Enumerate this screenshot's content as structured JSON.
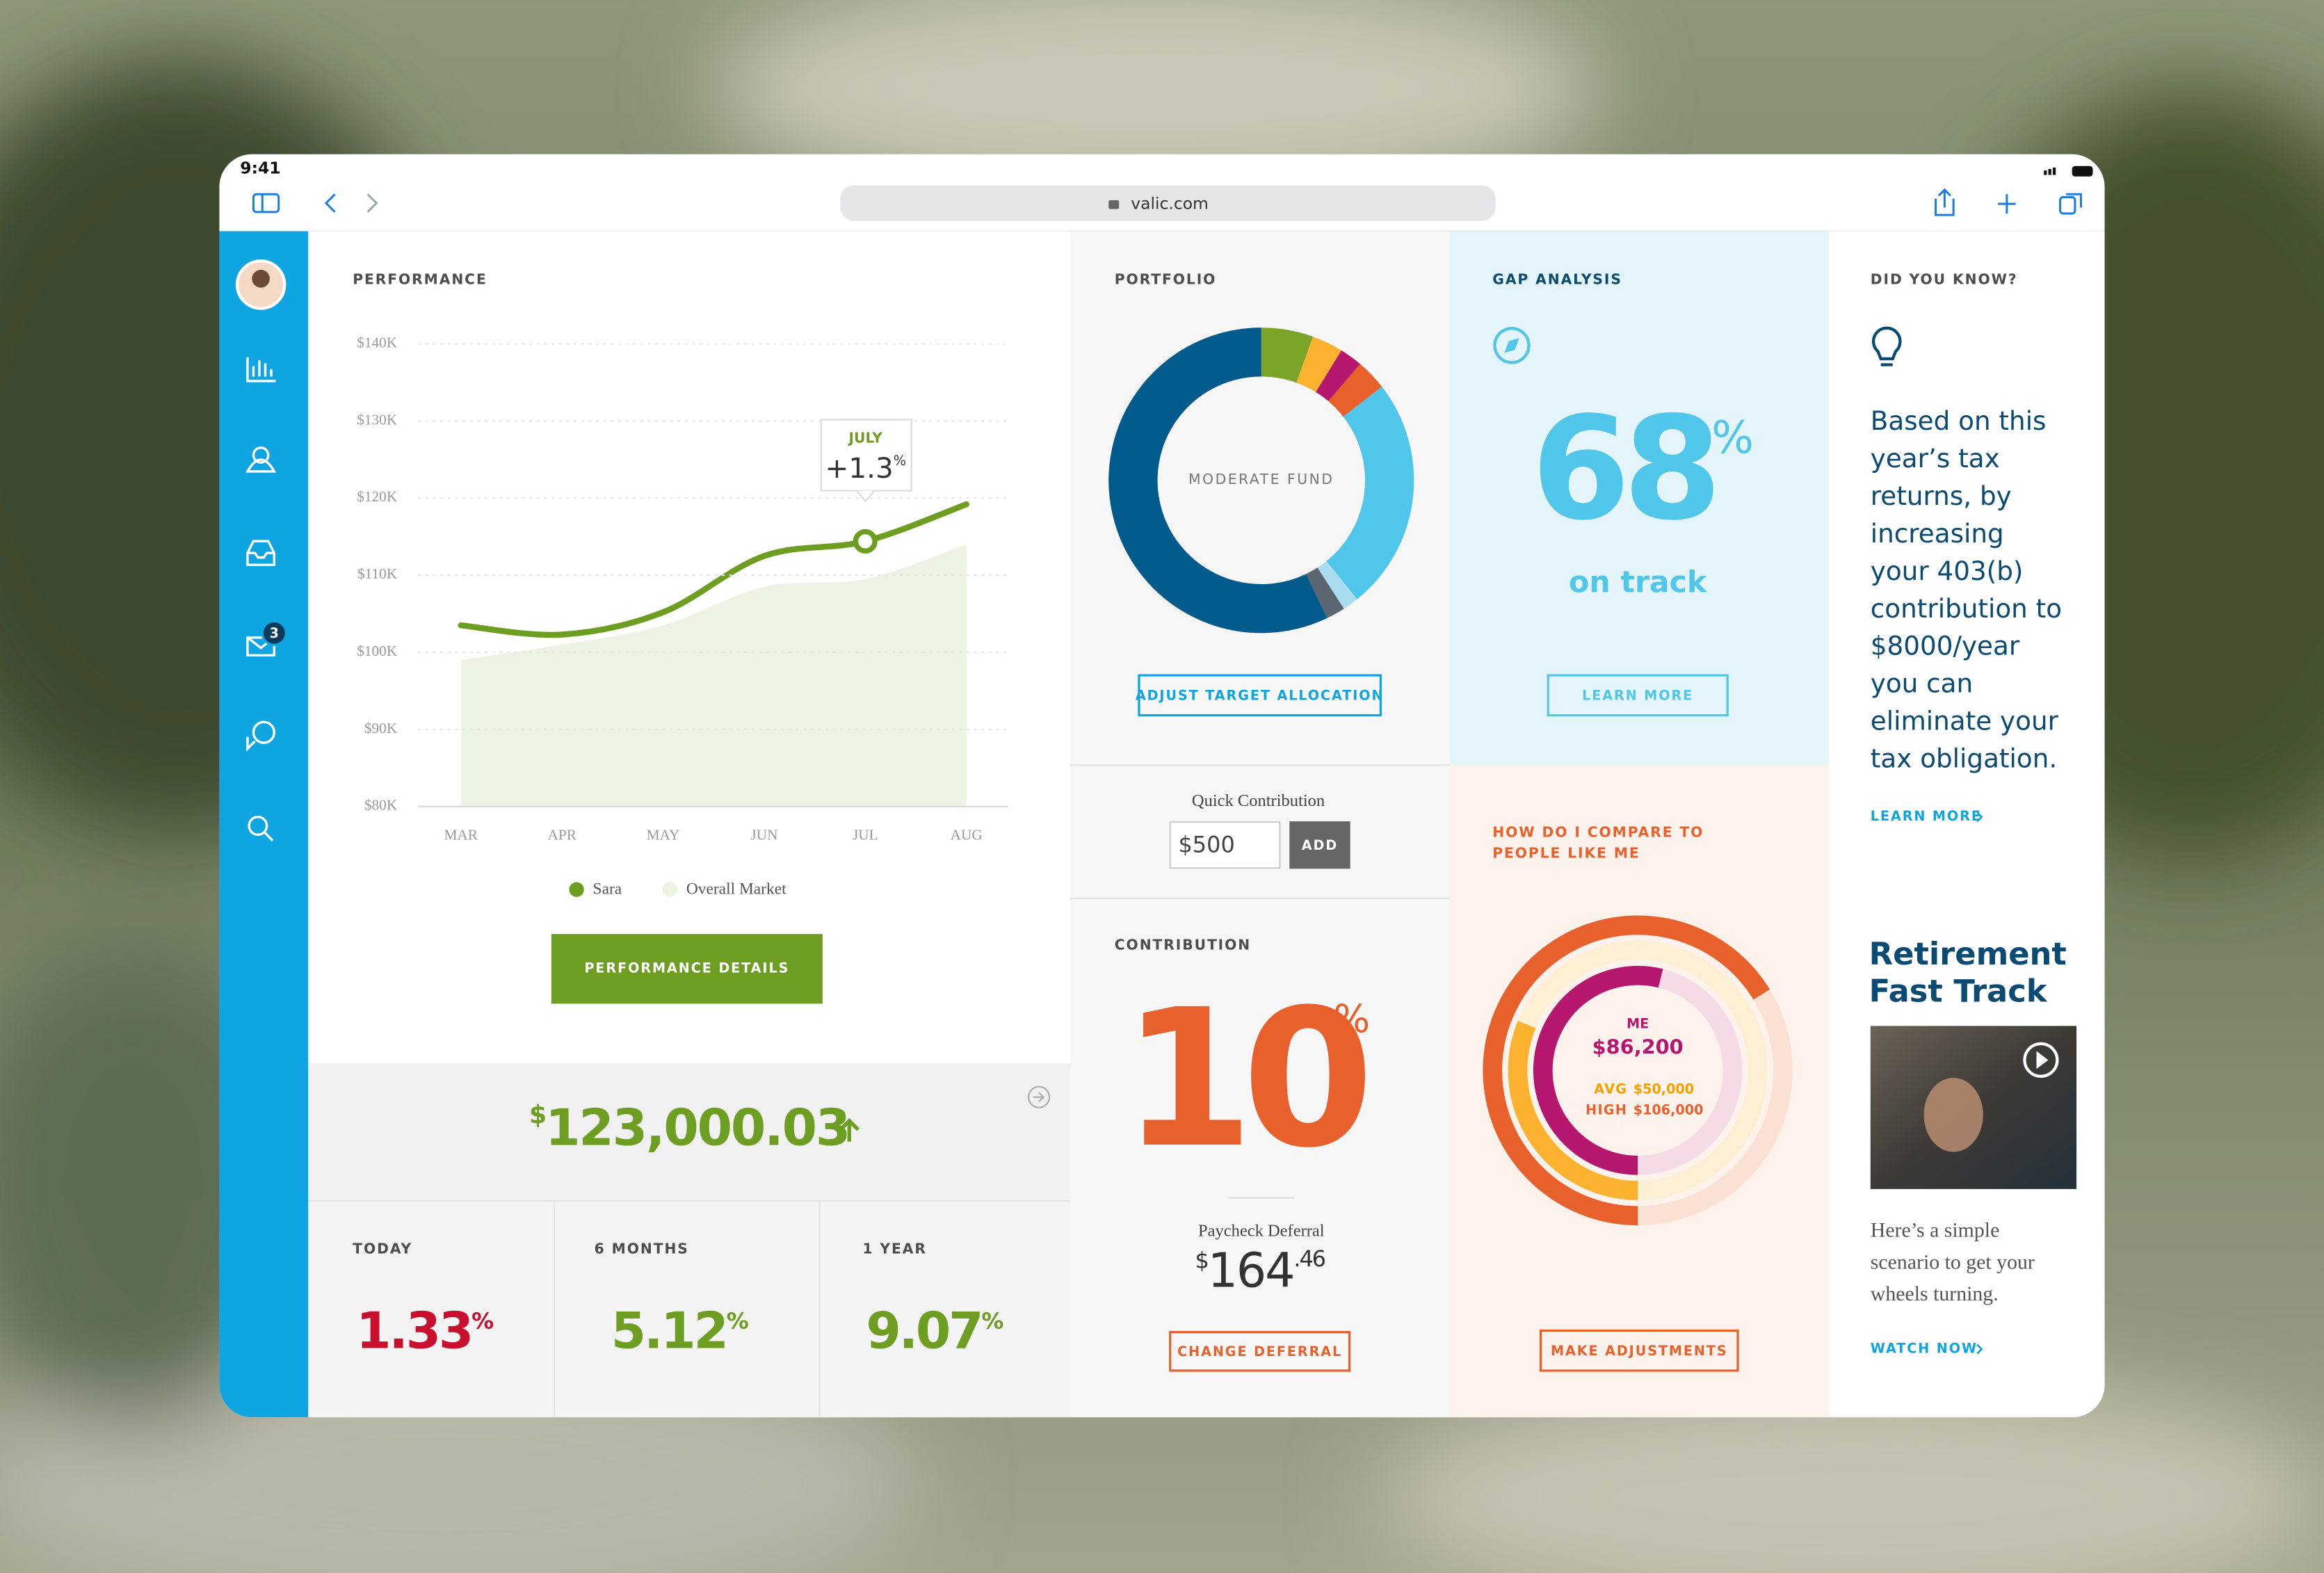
{
  "status_bar": {
    "time": "9:41"
  },
  "browser": {
    "url": "valic.com"
  },
  "sidebar": {
    "notification_count": "3"
  },
  "chart_data": [
    {
      "type": "line",
      "title": "PERFORMANCE",
      "categories": [
        "MAR",
        "APR",
        "MAY",
        "JUN",
        "JUL",
        "AUG"
      ],
      "series": [
        {
          "name": "Sara",
          "color": "#6d9e22",
          "values": [
            103500,
            102300,
            105200,
            112500,
            114400,
            119200
          ]
        },
        {
          "name": "Overall Market",
          "color": "#edf3e2",
          "values": [
            99000,
            101000,
            103500,
            108500,
            109500,
            114000
          ]
        }
      ],
      "ylim": [
        80000,
        140000
      ],
      "yticks": [
        {
          "value": 80000,
          "label": "$80K"
        },
        {
          "value": 90000,
          "label": "$90K"
        },
        {
          "value": 100000,
          "label": "$100K"
        },
        {
          "value": 110000,
          "label": "$110K"
        },
        {
          "value": 120000,
          "label": "$120K"
        },
        {
          "value": 130000,
          "label": "$130K"
        },
        {
          "value": 140000,
          "label": "$140K"
        }
      ],
      "grid": true,
      "annotation": {
        "category": "JULY",
        "value": "+1.3",
        "unit": "%"
      },
      "legend": "bottom"
    },
    {
      "type": "donut",
      "title": "PORTFOLIO",
      "center_label": "MODERATE FUND",
      "values": [
        5.5,
        3.3,
        2.4,
        3.3,
        24.7,
        1.7,
        2,
        57.1
      ],
      "colors": [
        "#7ba428",
        "#fbb22e",
        "#b5176e",
        "#e8612c",
        "#4fc6ea",
        "#a9dcef",
        "#5c6670",
        "#005a8c"
      ]
    },
    {
      "type": "radial_bar",
      "title_lines": [
        "HOW DO I COMPARE TO",
        "PEOPLE LIKE ME"
      ],
      "series": [
        {
          "name": "ME",
          "color": "#b5176e",
          "track": "#f4dbe6",
          "values": [
            86200
          ],
          "value_labels": [
            "$86,200"
          ]
        },
        {
          "name": "AVG",
          "color": "#fbb22e",
          "track": "#fdefd3",
          "values": [
            50000
          ],
          "value_labels": [
            "$50,000"
          ]
        },
        {
          "name": "HIGH",
          "color": "#e8612c",
          "track": "#fbe1d4",
          "values": [
            106000
          ],
          "value_labels": [
            "$106,000"
          ]
        }
      ],
      "ylim": [
        0,
        160000
      ]
    }
  ],
  "performance": {
    "button": "PERFORMANCE DETAILS",
    "balance": {
      "currency": "$",
      "amount": "123,000.03"
    },
    "returns": [
      {
        "label": "TODAY",
        "value": "1.33",
        "unit": "%",
        "color": "#c8102e"
      },
      {
        "label": "6 MONTHS",
        "value": "5.12",
        "unit": "%",
        "color": "#6d9e22"
      },
      {
        "label": "1 YEAR",
        "value": "9.07",
        "unit": "%",
        "color": "#6d9e22"
      }
    ]
  },
  "portfolio": {
    "button": "ADJUST TARGET ALLOCATION"
  },
  "quick_contribution": {
    "label": "Quick Contribution",
    "input": "$500",
    "button": "ADD"
  },
  "contribution": {
    "title": "CONTRIBUTION",
    "value": "10",
    "unit": "%",
    "deferral_label": "Paycheck Deferral",
    "deferral": {
      "currency": "$",
      "whole": "164",
      "cents": ".46"
    },
    "button": "CHANGE DEFERRAL"
  },
  "gap_analysis": {
    "title": "GAP ANALYSIS",
    "value": "68",
    "unit": "%",
    "status": "on track",
    "button": "LEARN MORE"
  },
  "compare": {
    "button": "MAKE ADJUSTMENTS"
  },
  "did_you_know": {
    "title": "DID YOU KNOW?",
    "lines": [
      "Based on this",
      "year’s tax",
      "returns, by",
      "increasing",
      "your 403(b)",
      "contribution to",
      "$8000/year",
      "you can",
      "eliminate your",
      "tax obligation."
    ],
    "link": "LEARN MORE"
  },
  "fast_track": {
    "title_lines": [
      "Retirement",
      "Fast Track"
    ],
    "lines": [
      "Here’s a simple",
      "scenario to get your",
      "wheels turning."
    ],
    "link": "WATCH NOW"
  }
}
